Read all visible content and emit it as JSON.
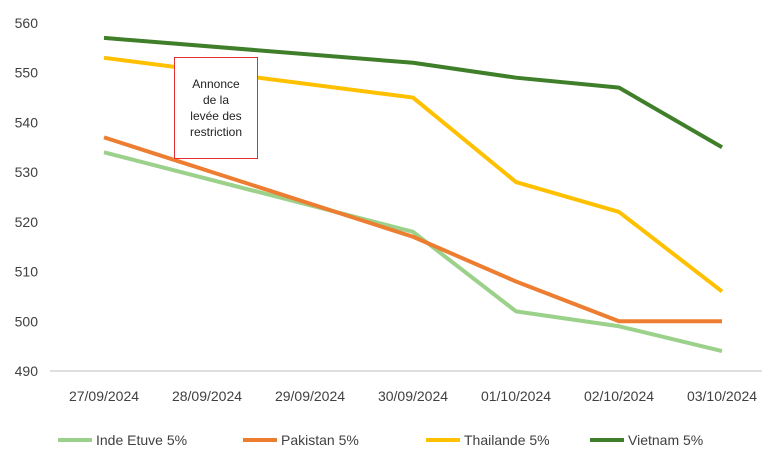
{
  "chart_data": {
    "type": "line",
    "title": "",
    "xlabel": "",
    "ylabel": "",
    "categories": [
      "27/09/2024",
      "28/09/2024",
      "29/09/2024",
      "30/09/2024",
      "01/10/2024",
      "02/10/2024",
      "03/10/2024"
    ],
    "ylim": [
      490,
      560
    ],
    "yticks": [
      490,
      500,
      510,
      520,
      530,
      540,
      550,
      560
    ],
    "grid": false,
    "legend_position": "bottom",
    "series": [
      {
        "name": "Inde Etuve 5%",
        "color": "#9bd18a",
        "values": [
          534,
          null,
          null,
          518,
          502,
          499,
          494
        ]
      },
      {
        "name": "Pakistan 5%",
        "color": "#ed7d31",
        "values": [
          537,
          null,
          null,
          517,
          508,
          500,
          500
        ]
      },
      {
        "name": "Thailande 5%",
        "color": "#ffc000",
        "values": [
          553,
          null,
          null,
          545,
          528,
          522,
          506
        ]
      },
      {
        "name": "Vietnam 5%",
        "color": "#3f7f2a",
        "values": [
          557,
          null,
          null,
          552,
          549,
          547,
          535
        ]
      }
    ],
    "annotation": {
      "text": "Annonce\nde la\nlevée des\nrestriction",
      "border_color": "#e03030"
    }
  }
}
